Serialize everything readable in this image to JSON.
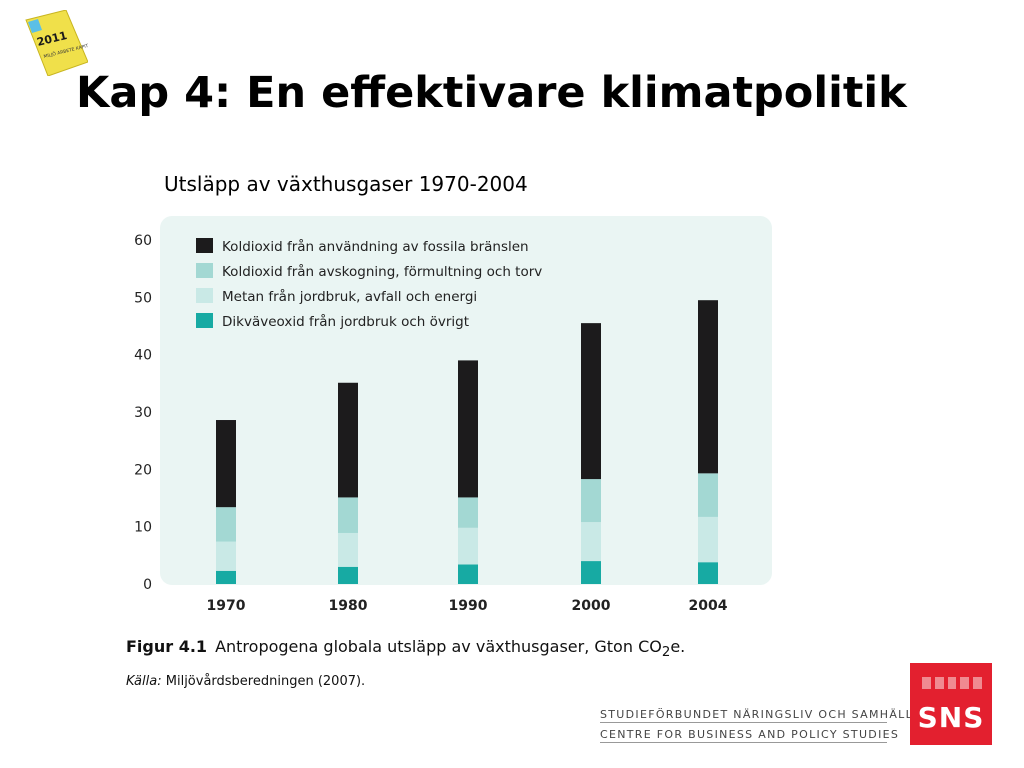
{
  "slide": {
    "title": "Kap 4: En effektivare klimatpolitik",
    "subtitle": "Utsläpp av växthusgaser 1970-2004",
    "book_year": "2011",
    "book_text": "MILJÖ ARBETE KAPITAL"
  },
  "caption": {
    "figure_label": "Figur 4.1",
    "text_before_sub": "Antropogena globala utsläpp av växthusgaser, Gton CO",
    "subscript": "2",
    "text_after_sub": "e.",
    "source_label": "Källa:",
    "source_text": "Miljövårdsberedningen (2007)."
  },
  "organization": {
    "name_sv": "STUDIEFÖRBUNDET NÄRINGSLIV OCH SAMHÄLLE",
    "name_en": "CENTRE FOR BUSINESS AND POLICY STUDIES",
    "logo_text": "SNS",
    "logo_color": "#e3202f"
  },
  "chart_data": {
    "type": "bar",
    "stacked": true,
    "categories": [
      "1970",
      "1980",
      "1990",
      "2000",
      "2004"
    ],
    "series": [
      {
        "name": "Dikväveoxid från jordbruk och övrigt",
        "color": "#17aaa3",
        "values": [
          2.3,
          3.0,
          3.4,
          4.0,
          3.8
        ]
      },
      {
        "name": "Metan från jordbruk, avfall och energi",
        "color": "#c9e9e6",
        "values": [
          5.1,
          5.9,
          6.4,
          6.8,
          7.9
        ]
      },
      {
        "name": "Koldioxid från avskogning, förmultning och torv",
        "color": "#a3d8d3",
        "values": [
          6.0,
          6.2,
          5.3,
          7.5,
          7.6
        ]
      },
      {
        "name": "Koldioxid från användning av fossila bränslen",
        "color": "#1c1b1c",
        "values": [
          15.2,
          20.0,
          23.9,
          27.2,
          30.2
        ]
      }
    ],
    "legend_order": [
      3,
      2,
      1,
      0
    ],
    "ylim": [
      0,
      60
    ],
    "yticks": [
      0,
      10,
      20,
      30,
      40,
      50,
      60
    ],
    "legend_position": "top-left",
    "grid": false,
    "background": "#eaf5f3",
    "xlabel": "",
    "ylabel": ""
  }
}
